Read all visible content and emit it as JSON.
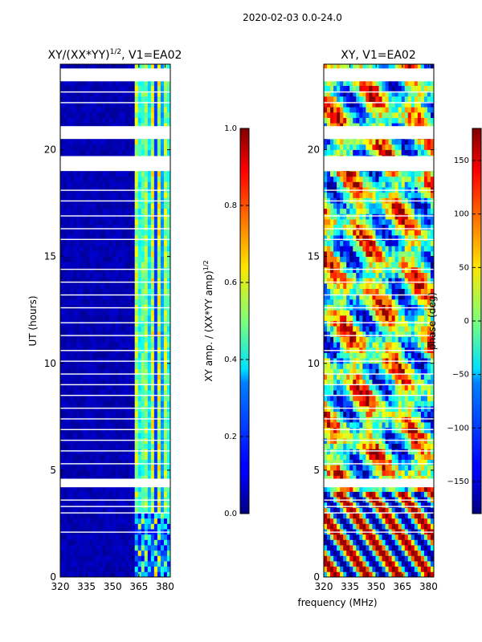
{
  "figure_title": "2020-02-03 0.0-24.0",
  "shared_xlabel": "frequency (MHz)",
  "chart_data": [
    {
      "type": "heatmap",
      "title": "XY/(XX*YY)",
      "title_exponent": "1/2",
      "title_suffix": ", V1=EA02",
      "xlabel": "",
      "ylabel": "UT (hours)",
      "xlim": [
        320,
        383
      ],
      "ylim": [
        0,
        24
      ],
      "xticks": [
        320,
        335,
        350,
        365,
        380
      ],
      "yticks": [
        0,
        5,
        10,
        15,
        20
      ],
      "colormap": "jet",
      "colorbar": {
        "label": "XY amp. / (XX*YY amp)",
        "label_exponent": "1/2",
        "range": [
          0.0,
          1.0
        ],
        "ticks": [
          "0.0",
          "0.2",
          "0.4",
          "0.6",
          "0.8",
          "1.0"
        ]
      },
      "flagged_ut_ranges": [
        [
          19.0,
          19.7
        ],
        [
          20.5,
          21.1
        ],
        [
          23.2,
          23.8
        ],
        [
          4.2,
          4.6
        ]
      ]
    },
    {
      "type": "heatmap",
      "title": "XY, V1=EA02",
      "xlabel": "",
      "ylabel": "",
      "xlim": [
        320,
        383
      ],
      "ylim": [
        0,
        24
      ],
      "xticks": [
        320,
        335,
        350,
        365,
        380
      ],
      "yticks": [
        0,
        5,
        10,
        15,
        20
      ],
      "colormap": "jet",
      "colorbar": {
        "label": "phase (deg)",
        "range": [
          -180,
          180
        ],
        "ticks": [
          "150",
          "100",
          "50",
          "0",
          "−50",
          "−100",
          "−150"
        ]
      },
      "flagged_ut_ranges": [
        [
          19.0,
          19.7
        ],
        [
          20.5,
          21.1
        ],
        [
          23.2,
          23.8
        ],
        [
          4.2,
          4.6
        ]
      ]
    }
  ]
}
